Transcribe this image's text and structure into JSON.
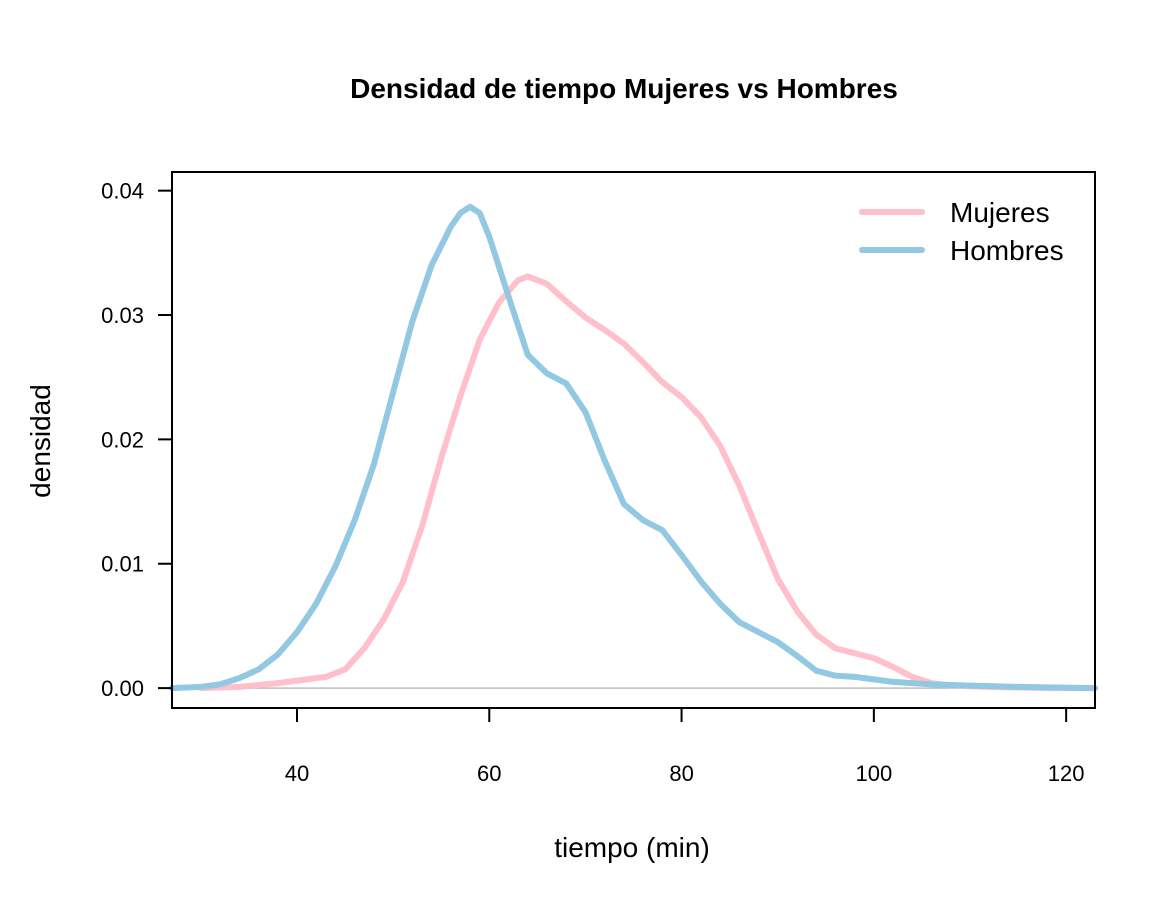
{
  "chart_data": {
    "type": "line",
    "title": "Densidad de tiempo Mujeres vs Hombres",
    "xlabel": "tiempo (min)",
    "ylabel": "densidad",
    "xlim": [
      27,
      123
    ],
    "ylim": [
      -0.0016,
      0.0415
    ],
    "x_ticks": [
      40,
      60,
      80,
      100,
      120
    ],
    "y_ticks": [
      0.0,
      0.01,
      0.02,
      0.03,
      0.04
    ],
    "x_tick_labels": [
      "40",
      "60",
      "80",
      "100",
      "120"
    ],
    "y_tick_labels": [
      "0.00",
      "0.01",
      "0.02",
      "0.03",
      "0.04"
    ],
    "baseline": 0,
    "legend_position": "top-right",
    "grid": false,
    "series": [
      {
        "name": "Mujeres",
        "color": "#FFC0CB",
        "points": [
          [
            30,
            0.0
          ],
          [
            34,
            0.0001
          ],
          [
            38,
            0.0004
          ],
          [
            41,
            0.0007
          ],
          [
            43,
            0.0009
          ],
          [
            45,
            0.0015
          ],
          [
            47,
            0.0032
          ],
          [
            49,
            0.0055
          ],
          [
            51,
            0.0085
          ],
          [
            53,
            0.013
          ],
          [
            55,
            0.0185
          ],
          [
            57,
            0.0235
          ],
          [
            59,
            0.028
          ],
          [
            61,
            0.031
          ],
          [
            63,
            0.0328
          ],
          [
            64,
            0.0331
          ],
          [
            66,
            0.0325
          ],
          [
            68,
            0.0311
          ],
          [
            70,
            0.0298
          ],
          [
            72,
            0.0288
          ],
          [
            74,
            0.0277
          ],
          [
            76,
            0.0262
          ],
          [
            78,
            0.0246
          ],
          [
            80,
            0.0234
          ],
          [
            82,
            0.0218
          ],
          [
            84,
            0.0195
          ],
          [
            86,
            0.0163
          ],
          [
            88,
            0.0125
          ],
          [
            90,
            0.0088
          ],
          [
            92,
            0.0062
          ],
          [
            94,
            0.0043
          ],
          [
            96,
            0.0032
          ],
          [
            98,
            0.0028
          ],
          [
            100,
            0.0024
          ],
          [
            102,
            0.0017
          ],
          [
            104,
            0.0009
          ],
          [
            106,
            0.0004
          ],
          [
            108,
            0.0002
          ],
          [
            112,
            0.0001
          ],
          [
            118,
            0.0
          ],
          [
            123,
            0.0
          ]
        ]
      },
      {
        "name": "Hombres",
        "color": "#93C8E2",
        "points": [
          [
            27,
            0.0
          ],
          [
            30,
            0.0001
          ],
          [
            32,
            0.0003
          ],
          [
            34,
            0.0008
          ],
          [
            36,
            0.0015
          ],
          [
            38,
            0.0027
          ],
          [
            40,
            0.0045
          ],
          [
            42,
            0.0068
          ],
          [
            44,
            0.0098
          ],
          [
            46,
            0.0135
          ],
          [
            48,
            0.018
          ],
          [
            50,
            0.0238
          ],
          [
            52,
            0.0295
          ],
          [
            54,
            0.034
          ],
          [
            56,
            0.0371
          ],
          [
            57,
            0.0382
          ],
          [
            58,
            0.0387
          ],
          [
            59,
            0.0382
          ],
          [
            60,
            0.0363
          ],
          [
            62,
            0.0315
          ],
          [
            64,
            0.0268
          ],
          [
            66,
            0.0253
          ],
          [
            68,
            0.0245
          ],
          [
            70,
            0.0222
          ],
          [
            72,
            0.0183
          ],
          [
            74,
            0.0148
          ],
          [
            76,
            0.0135
          ],
          [
            78,
            0.0127
          ],
          [
            80,
            0.0107
          ],
          [
            82,
            0.0086
          ],
          [
            84,
            0.0068
          ],
          [
            86,
            0.0053
          ],
          [
            88,
            0.0045
          ],
          [
            90,
            0.0037
          ],
          [
            92,
            0.0026
          ],
          [
            94,
            0.0014
          ],
          [
            96,
            0.001
          ],
          [
            98,
            0.0009
          ],
          [
            100,
            0.0007
          ],
          [
            102,
            0.0005
          ],
          [
            106,
            0.0003
          ],
          [
            110,
            0.0002
          ],
          [
            115,
            0.0001
          ],
          [
            123,
            0.0
          ]
        ]
      }
    ]
  }
}
